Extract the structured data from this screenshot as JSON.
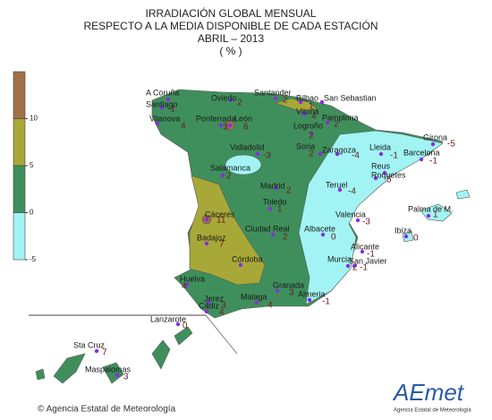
{
  "title": [
    "IRRADIACIÓN GLOBAL MENSUAL",
    "RESPECTO A LA MEDIA DISPONIBLE DE CADA ESTACIÓN",
    "ABRIL – 2013",
    "( % )"
  ],
  "legend": {
    "ticks": [
      10,
      5,
      0,
      -5
    ],
    "colors": [
      "#a07048",
      "#a8a838",
      "#3f8f5c",
      "#a2f4f4"
    ]
  },
  "stations": [
    {
      "name": "A Coruña"
    },
    {
      "name": "Santiago",
      "value": -1
    },
    {
      "name": "Vilanova",
      "value": 4
    },
    {
      "name": "Oviedo",
      "value": 2
    },
    {
      "name": "Ponferrada",
      "value": 3
    },
    {
      "name": "León",
      "value": 6
    },
    {
      "name": "Santander",
      "value": 2
    },
    {
      "name": "Bilbao",
      "value": 1
    },
    {
      "name": "San Sebastian"
    },
    {
      "name": "Vitoria",
      "value": 4
    },
    {
      "name": "Pamplona",
      "value": 2
    },
    {
      "name": "Logroño",
      "value": 2
    },
    {
      "name": "Valladolid",
      "value": -3
    },
    {
      "name": "Soria",
      "value": 2
    },
    {
      "name": "Zaragoza",
      "value": -4
    },
    {
      "name": "Lleida",
      "value": -1
    },
    {
      "name": "Girona",
      "value": -5
    },
    {
      "name": "Barcelona",
      "value": -1
    },
    {
      "name": "Reus"
    },
    {
      "name": "Roquetes",
      "value": 5
    },
    {
      "name": "Salamanca",
      "value": 2
    },
    {
      "name": "Madrid",
      "value": 2
    },
    {
      "name": "Teruel",
      "value": -4
    },
    {
      "name": "Toledo",
      "value": 1
    },
    {
      "name": "Valencia",
      "value": -3
    },
    {
      "name": "Palma de M.",
      "value": 1
    },
    {
      "name": "Cáceres",
      "value": 11
    },
    {
      "name": "Badajoz",
      "value": 7
    },
    {
      "name": "Ciudad Real",
      "value": 2
    },
    {
      "name": "Albacete",
      "value": 0
    },
    {
      "name": "Ibiza",
      "value": 0
    },
    {
      "name": "Alicante",
      "value": -1
    },
    {
      "name": "Murcia",
      "value": 2
    },
    {
      "name": "San Javier",
      "value": -1
    },
    {
      "name": "Córdoba"
    },
    {
      "name": "Huelva",
      "value": 4
    },
    {
      "name": "Granada",
      "value": 3
    },
    {
      "name": "Almeria",
      "value": -1
    },
    {
      "name": "Malaga",
      "value": 4
    },
    {
      "name": "Jerez",
      "value": 3
    },
    {
      "name": "Cádiz",
      "value": 4
    },
    {
      "name": "Lanzarote",
      "value": 0
    },
    {
      "name": "Sta Cruz",
      "value": 7
    },
    {
      "name": "Maspalomas",
      "value": 3
    }
  ],
  "footer": "© Agencia Estatal de Meteorología",
  "logo": {
    "name": "AEmet",
    "subtitle": "Agencia Estatal de Meteorología"
  }
}
